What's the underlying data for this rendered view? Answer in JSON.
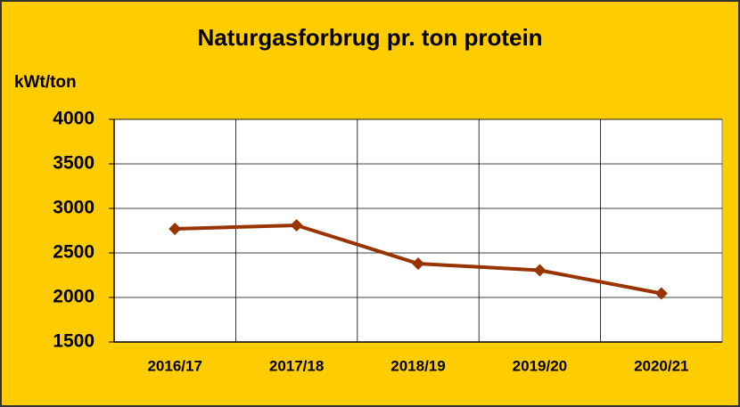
{
  "chart_data": {
    "type": "line",
    "title": "Naturgasforbrug pr. ton protein",
    "y_label": "kWt/ton",
    "categories": [
      "2016/17",
      "2017/18",
      "2018/19",
      "2019/20",
      "2020/21"
    ],
    "values": [
      2770,
      2810,
      2380,
      2305,
      2045
    ],
    "color": "#993300",
    "ylim": [
      1500,
      4000
    ],
    "yticks": [
      1500,
      2000,
      2500,
      3000,
      3500,
      4000
    ],
    "grid": true
  }
}
